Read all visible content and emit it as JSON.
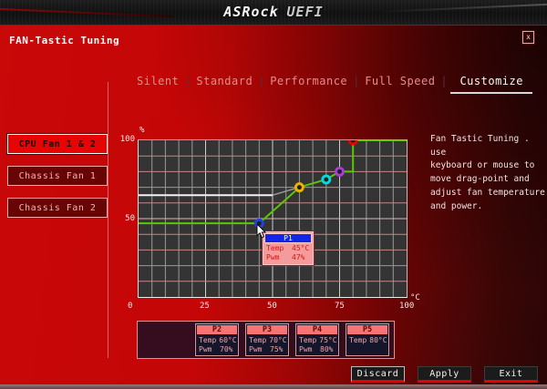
{
  "banner": {
    "brand": "ASRock",
    "product": "UEFI"
  },
  "header": {
    "title": "FAN-Tastic Tuning",
    "close_label": "x"
  },
  "tabs": [
    {
      "label": "Silent",
      "active": false
    },
    {
      "label": "Standard",
      "active": false
    },
    {
      "label": "Performance",
      "active": false
    },
    {
      "label": "Full Speed",
      "active": false
    },
    {
      "label": "Customize",
      "active": true
    }
  ],
  "tab_separator": "|",
  "sidebar": [
    {
      "label": "CPU Fan 1 & 2",
      "active": true
    },
    {
      "label": "Chassis Fan 1",
      "active": false
    },
    {
      "label": "Chassis Fan 2",
      "active": false
    }
  ],
  "description": "Fan Tastic Tuning . use\nkeyboard or mouse to\nmove drag-point and\nadjust fan temperature\nand power.",
  "chart_data": {
    "type": "line",
    "title": "Fan curve (PWM % vs temperature °C)",
    "xlabel": "°C",
    "ylabel": "%",
    "xlim": [
      0,
      100
    ],
    "ylim": [
      0,
      100
    ],
    "x_ticks": [
      0,
      25,
      50,
      75,
      100
    ],
    "y_ticks": [
      0,
      50,
      100
    ],
    "grid": {
      "x_step": 5,
      "y_step": 10,
      "on": true
    },
    "curve_color": "#5ac800",
    "curve": [
      [
        0,
        47
      ],
      [
        45,
        47
      ],
      [
        60,
        70
      ],
      [
        70,
        75
      ],
      [
        75,
        80
      ],
      [
        80,
        80
      ],
      [
        80,
        100
      ],
      [
        100,
        100
      ]
    ],
    "reference_white": [
      [
        0,
        65
      ],
      [
        50,
        65
      ]
    ],
    "reference_gray": [
      [
        50,
        65
      ],
      [
        60,
        70
      ]
    ],
    "points": [
      {
        "label": "P1",
        "temp": 45,
        "pwm": 47,
        "color": "#2342e0"
      },
      {
        "label": "P2",
        "temp": 60,
        "pwm": 70,
        "color": "#e8b400"
      },
      {
        "label": "P3",
        "temp": 70,
        "pwm": 75,
        "color": "#00dcdc"
      },
      {
        "label": "P4",
        "temp": 75,
        "pwm": 80,
        "color": "#a83cd8"
      },
      {
        "label": "P5",
        "temp": 80,
        "pwm": 100,
        "color": "#e60000"
      }
    ]
  },
  "tooltip": {
    "title": "P1",
    "rows": [
      {
        "label": "Temp",
        "value": "45°C"
      },
      {
        "label": "Pwm",
        "value": "47%"
      }
    ]
  },
  "point_boxes": [
    {
      "title": "P2",
      "rows": [
        {
          "label": "Temp",
          "value": "60°C"
        },
        {
          "label": "Pwm",
          "value": "70%"
        }
      ]
    },
    {
      "title": "P3",
      "rows": [
        {
          "label": "Temp",
          "value": "70°C"
        },
        {
          "label": "Pwm",
          "value": "75%"
        }
      ]
    },
    {
      "title": "P4",
      "rows": [
        {
          "label": "Temp",
          "value": "75°C"
        },
        {
          "label": "Pwm",
          "value": "80%"
        }
      ]
    },
    {
      "title": "P5",
      "rows": [
        {
          "label": "Temp",
          "value": "80°C"
        }
      ]
    }
  ],
  "actions": {
    "discard": "Discard",
    "apply": "Apply",
    "exit": "Exit"
  }
}
